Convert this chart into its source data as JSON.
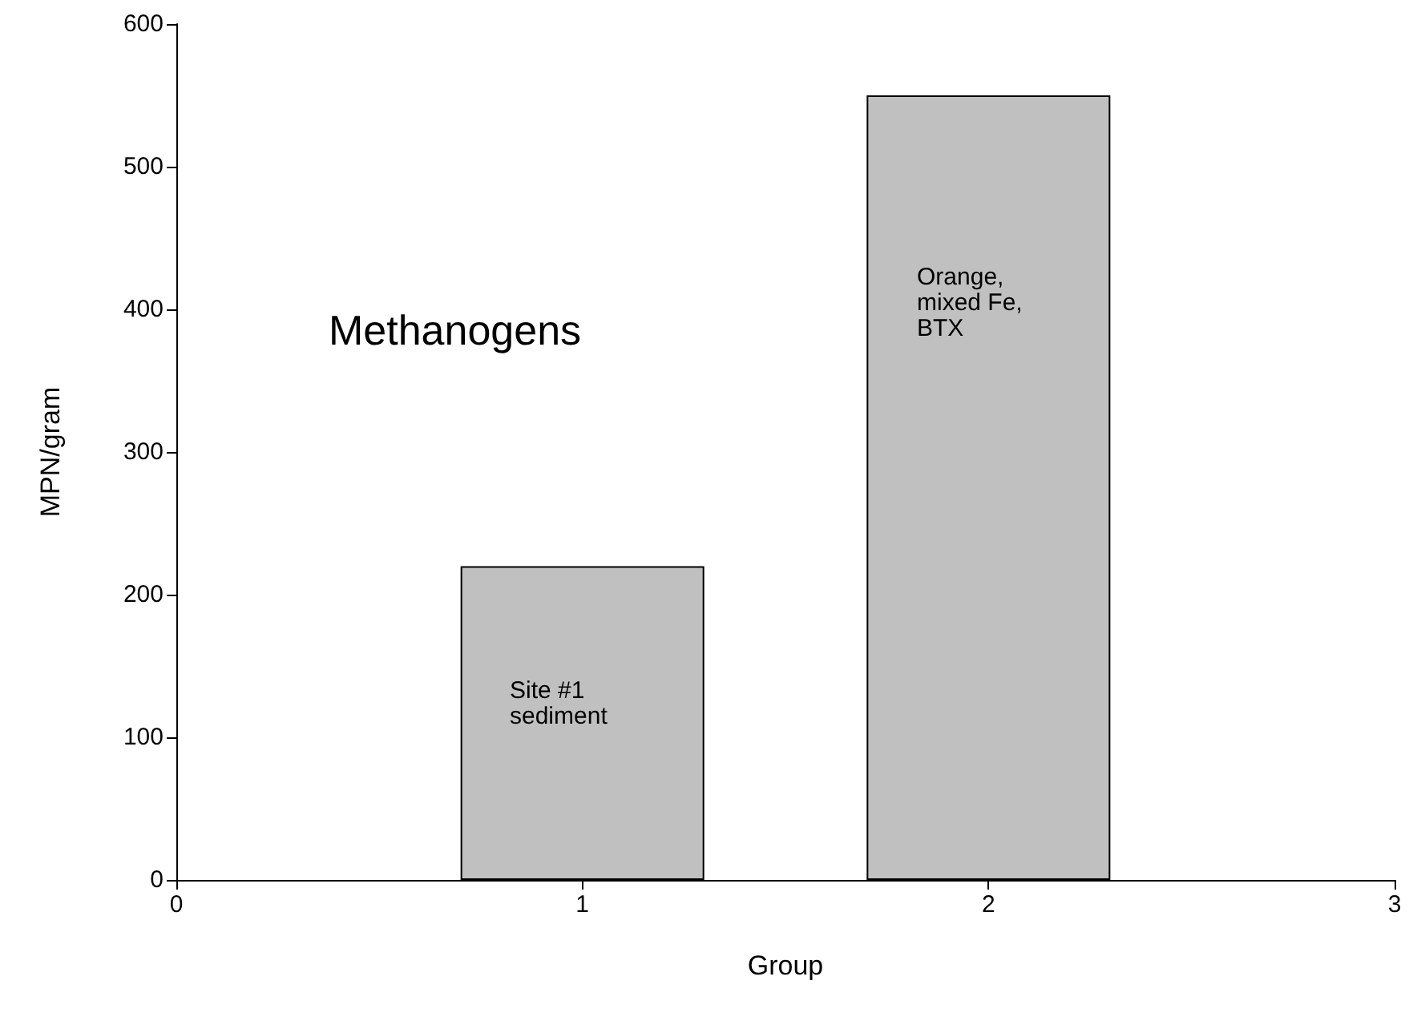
{
  "chart_data": {
    "type": "bar",
    "xlabel": "Group",
    "ylabel": "MPN/gram",
    "x": [
      1,
      2
    ],
    "values": [
      220,
      550
    ],
    "color": "#c0c0c0",
    "xlim": [
      0,
      3
    ],
    "xticks": [
      0,
      1,
      2,
      3
    ],
    "ylim": [
      0,
      600
    ],
    "yticks": [
      0,
      100,
      200,
      300,
      400,
      500,
      600
    ],
    "grid": false,
    "annotations": [
      "Methanogens",
      "Site #1 sediment",
      "Orange, mixed Fe, BTX"
    ]
  }
}
